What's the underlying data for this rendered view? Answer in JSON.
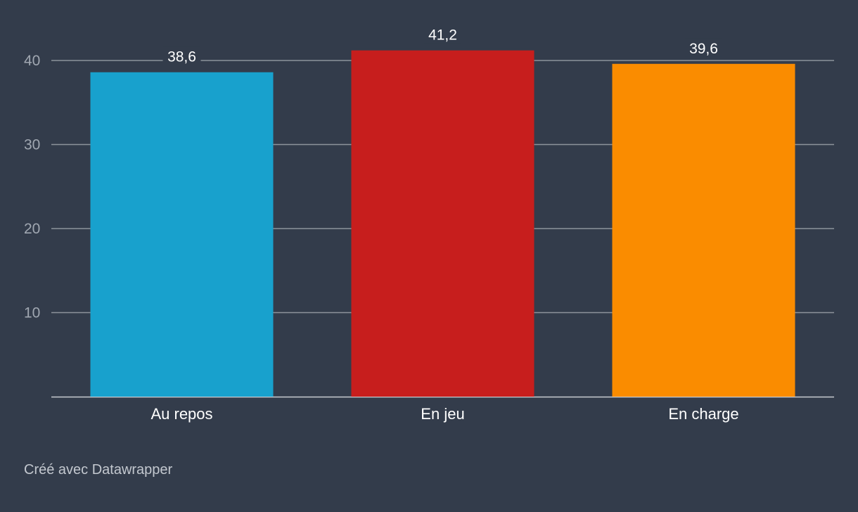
{
  "chart_data": {
    "type": "bar",
    "categories": [
      "Au repos",
      "En jeu",
      "En charge"
    ],
    "values": [
      38.6,
      41.2,
      39.6
    ],
    "value_labels": [
      "38,6",
      "41,2",
      "39,6"
    ],
    "colors": [
      "#18a1cd",
      "#c71e1d",
      "#fa8c00"
    ],
    "title": "",
    "xlabel": "",
    "ylabel": "",
    "ylim": [
      0,
      40
    ],
    "yticks": [
      10,
      20,
      30,
      40
    ],
    "grid": true,
    "legend": "none"
  },
  "theme": {
    "background": "#333c4b",
    "gridline": "#8d939b",
    "baseline": "#c9cdd2"
  },
  "footer": {
    "credit": "Créé avec Datawrapper"
  }
}
